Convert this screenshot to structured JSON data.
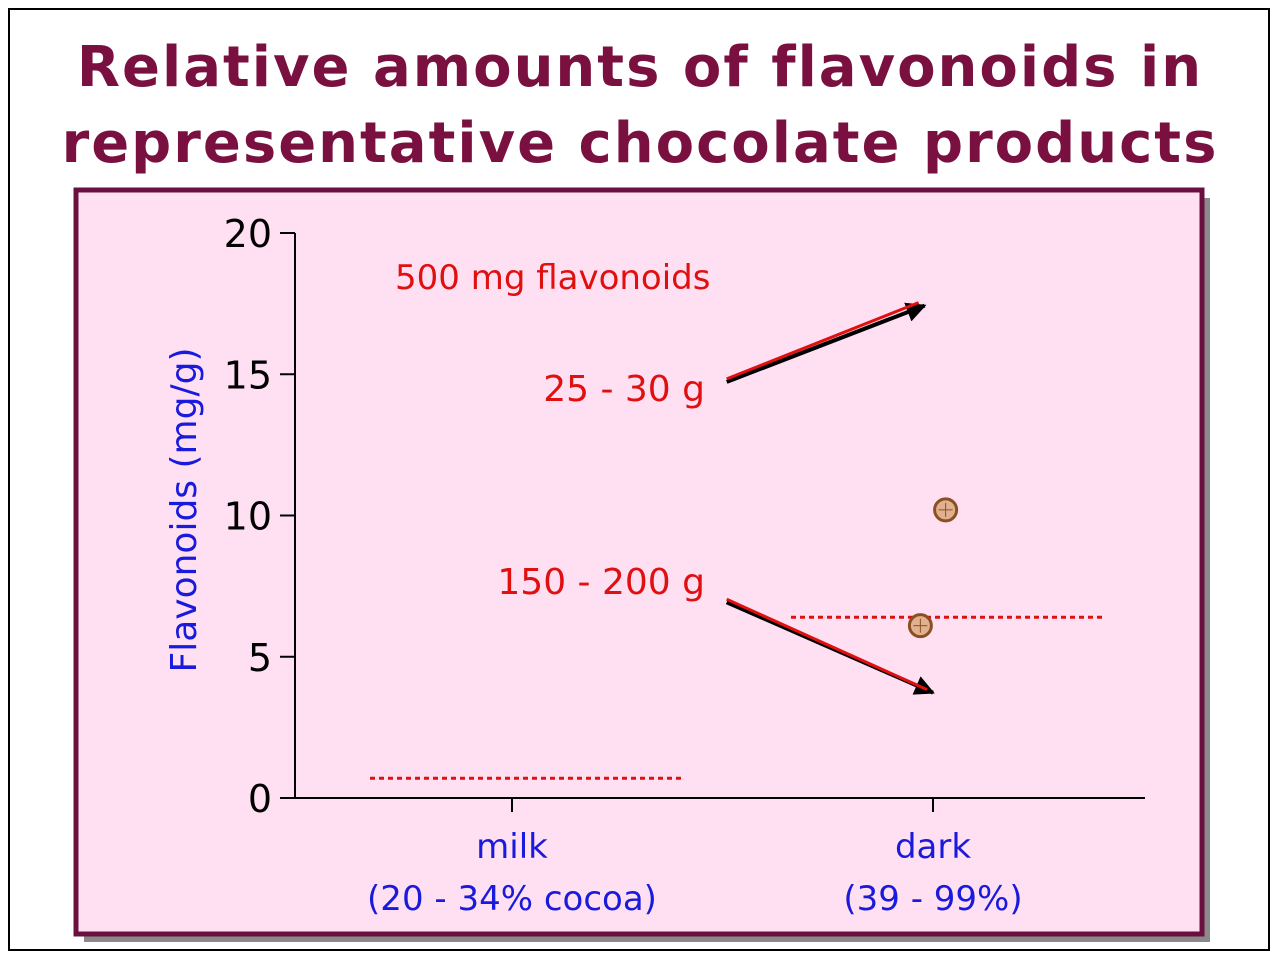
{
  "slide": {
    "title_line1": "Relative amounts of flavonoids in",
    "title_line2": "representative chocolate products"
  },
  "colors": {
    "title": "#7a1040",
    "panel_fill": "#ffe0f2",
    "panel_border": "#6a1040",
    "annotation_red": "#e01010",
    "axis_label_blue": "#1a1adc",
    "point_fill": "#e0b090",
    "point_stroke": "#8a5020"
  },
  "chart_data": {
    "type": "scatter",
    "ylabel": "Flavonoids (mg/g)",
    "ylim": [
      0,
      20
    ],
    "yticks": [
      "0",
      "5",
      "10",
      "15",
      "20"
    ],
    "categories": [
      {
        "line1": "milk",
        "line2": "(20 - 34% cocoa)"
      },
      {
        "line1": "dark",
        "line2": "(39 - 99%)"
      }
    ],
    "points": [
      {
        "category": 1,
        "offset": 0.03,
        "y": 10.2
      },
      {
        "category": 1,
        "offset": -0.03,
        "y": 6.1
      }
    ],
    "reference_lines": [
      {
        "category": 0,
        "y": 0.7
      },
      {
        "category": 1,
        "y": 6.4
      }
    ],
    "annotations": {
      "note": "500 mg flavonoids",
      "upper": "25 - 30 g",
      "lower": "150 - 200 g"
    },
    "arrows": [
      {
        "from": [
          0.51,
          14.8
        ],
        "to": [
          0.98,
          17.5
        ]
      },
      {
        "from": [
          0.51,
          7.0
        ],
        "to": [
          1.0,
          3.8
        ]
      }
    ]
  }
}
